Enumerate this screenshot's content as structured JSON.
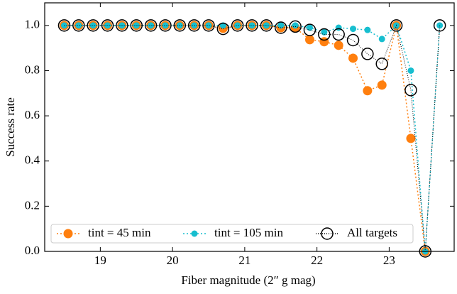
{
  "chart_data": {
    "type": "line",
    "xlabel": "Fiber magnitude (2″ g mag)",
    "ylabel": "Success rate",
    "x": [
      18.5,
      18.7,
      18.9,
      19.1,
      19.3,
      19.5,
      19.7,
      19.9,
      20.1,
      20.3,
      20.5,
      20.7,
      20.9,
      21.1,
      21.3,
      21.5,
      21.7,
      21.9,
      22.1,
      22.3,
      22.5,
      22.7,
      22.9,
      23.1,
      23.3,
      23.5,
      23.7
    ],
    "series": [
      {
        "name": "tint = 45 min",
        "color": "#ff7f0e",
        "marker": "filled-large",
        "values": [
          1,
          1,
          1,
          1,
          1,
          1,
          1,
          1,
          1,
          1,
          1,
          0.987,
          1,
          1,
          1,
          0.99,
          0.99,
          0.937,
          0.928,
          0.912,
          0.855,
          0.711,
          0.736,
          1,
          0.5,
          0,
          null
        ]
      },
      {
        "name": "tint = 105 min",
        "color": "#17becf",
        "marker": "filled-small",
        "values": [
          1,
          1,
          1,
          1,
          1,
          1,
          1,
          1,
          1,
          1,
          1,
          1,
          1,
          1,
          1,
          1,
          1,
          0.99,
          0.97,
          0.99,
          0.985,
          0.98,
          0.94,
          1,
          0.8,
          0,
          1
        ]
      },
      {
        "name": "All targets",
        "color": "#000000",
        "marker": "hollow",
        "values": [
          1,
          1,
          1,
          1,
          1,
          1,
          1,
          1,
          1,
          1,
          1,
          0.985,
          1,
          1,
          1,
          0.99,
          0.995,
          0.98,
          0.96,
          0.96,
          0.935,
          0.874,
          0.83,
          1,
          0.714,
          0,
          1
        ]
      }
    ],
    "xlim": [
      18.23,
      23.9
    ],
    "xticks": [
      19,
      20,
      21,
      22,
      23
    ],
    "ylim": [
      0,
      1.1
    ],
    "yticks": [
      {
        "value": 0,
        "label": "0.0"
      },
      0.2,
      0.4,
      0.6,
      0.8,
      {
        "value": 1,
        "label": "1.0"
      }
    ],
    "legend": "lower left"
  }
}
